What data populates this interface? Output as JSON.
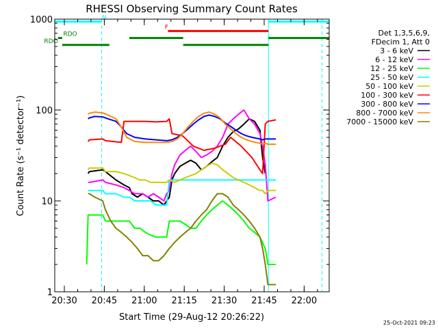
{
  "chart_data": {
    "type": "line",
    "title": "RHESSI Observing Summary Count Rates",
    "xlabel": "Start Time (29-Aug-12 20:26:22)",
    "ylabel": "Count Rate (s⁻¹ detector⁻¹)",
    "yscale": "log",
    "ylim": [
      1,
      1000
    ],
    "xlim_min": [
      0,
      103
    ],
    "yticks": [
      {
        "value": 1,
        "label": "1"
      },
      {
        "value": 10,
        "label": "10"
      },
      {
        "value": 100,
        "label": "100"
      },
      {
        "value": 1000,
        "label": "1000"
      }
    ],
    "xticks": [
      {
        "min": 3.6,
        "label": "20:30"
      },
      {
        "min": 18.6,
        "label": "20:45"
      },
      {
        "min": 33.6,
        "label": "21:00"
      },
      {
        "min": 48.6,
        "label": "21:15"
      },
      {
        "min": 63.6,
        "label": "21:30"
      },
      {
        "min": 78.6,
        "label": "21:45"
      },
      {
        "min": 93.6,
        "label": "22:00"
      }
    ],
    "legend_placement": "right-top",
    "legend_header": [
      "Det 1,3,5,6,9,",
      "FDecim 1, Att 0"
    ],
    "series": [
      {
        "name": "3 - 6 keV",
        "color": "#000000",
        "x": [
          12.5,
          13,
          18,
          19,
          23,
          26,
          28,
          29,
          31,
          33,
          35,
          37,
          39,
          41,
          42,
          43,
          44,
          45,
          47,
          49,
          51,
          53,
          55,
          57,
          59,
          61,
          63,
          65,
          67,
          69,
          71,
          73,
          75,
          77,
          78,
          79
        ],
        "y": [
          20,
          21,
          22,
          21,
          17,
          15,
          14,
          12,
          11,
          12,
          11,
          10,
          10,
          9,
          10,
          11,
          17,
          20,
          24,
          26,
          28,
          26,
          22,
          24,
          27,
          30,
          40,
          50,
          58,
          62,
          70,
          80,
          75,
          60,
          30,
          20
        ]
      },
      {
        "name": "6 - 12 keV",
        "color": "#ff00ff",
        "x": [
          12.5,
          13,
          18,
          19,
          23,
          26,
          28,
          30,
          33,
          35,
          37,
          39,
          41,
          42,
          43,
          44,
          45,
          47,
          49,
          51,
          53,
          55,
          57,
          59,
          61,
          63,
          65,
          67,
          69,
          71,
          73,
          75,
          77,
          78,
          79,
          80,
          83
        ],
        "y": [
          16,
          16,
          17,
          16,
          15,
          14,
          13,
          12,
          12,
          11,
          12,
          11,
          10,
          12,
          13,
          20,
          25,
          32,
          36,
          40,
          35,
          30,
          32,
          35,
          40,
          50,
          70,
          80,
          90,
          100,
          80,
          70,
          55,
          40,
          25,
          10,
          11
        ]
      },
      {
        "name": "12 - 25 keV",
        "color": "#00ff00",
        "x": [
          12,
          12.5,
          13,
          15,
          18,
          19,
          23,
          26,
          28,
          30,
          32,
          34,
          36,
          38,
          40,
          42,
          43,
          45,
          47,
          49,
          51,
          53,
          55,
          57,
          59,
          61,
          63,
          65,
          67,
          69,
          71,
          73,
          75,
          77,
          79,
          80,
          83
        ],
        "y": [
          2,
          7,
          7,
          7,
          7,
          6,
          6,
          6,
          6,
          5,
          5,
          4.5,
          4.2,
          4,
          4,
          4,
          6,
          6,
          6,
          5.5,
          5,
          5,
          6,
          7,
          8,
          9,
          10,
          9,
          8,
          7,
          6,
          5,
          4.5,
          4,
          3,
          2,
          2
        ]
      },
      {
        "name": "25 - 50 keV",
        "color": "#00ffff",
        "x": [
          12.5,
          13,
          15,
          18,
          19,
          23,
          26,
          28,
          30,
          32,
          34,
          36,
          38,
          40,
          42,
          43,
          44,
          46,
          50,
          54,
          58,
          62,
          66,
          70,
          74,
          77,
          78,
          79,
          80,
          83
        ],
        "y": [
          13,
          13,
          13,
          13,
          12,
          12,
          11,
          11,
          10,
          10,
          10,
          10,
          9,
          9,
          9,
          17,
          17,
          17,
          17,
          17,
          17,
          17,
          17,
          17,
          17,
          17,
          17,
          17,
          17,
          17
        ]
      },
      {
        "name": "50 - 100 keV",
        "color": "#cccc00",
        "x": [
          12.5,
          13,
          18,
          19,
          23,
          26,
          28,
          30,
          32,
          34,
          36,
          38,
          40,
          42,
          43,
          45,
          47,
          49,
          51,
          53,
          55,
          57,
          59,
          61,
          63,
          65,
          67,
          69,
          71,
          73,
          75,
          77,
          78,
          79,
          80,
          83
        ],
        "y": [
          22,
          23,
          23,
          21,
          21,
          20,
          19,
          18,
          17,
          17,
          16,
          16,
          16,
          16,
          17,
          16,
          17,
          18,
          19,
          20,
          22,
          24,
          26,
          25,
          22,
          20,
          18,
          17,
          16,
          15,
          14,
          13,
          13,
          12,
          13,
          13
        ]
      },
      {
        "name": "100 - 300 keV",
        "color": "#ff0000",
        "x": [
          12.5,
          13,
          18,
          19,
          25,
          26,
          30,
          34,
          38,
          42,
          43,
          44,
          48,
          52,
          56,
          60,
          62,
          64,
          66,
          70,
          74,
          77,
          78,
          79,
          80,
          83
        ],
        "y": [
          45,
          47,
          48,
          46,
          44,
          75,
          75,
          75,
          74,
          75,
          80,
          55,
          52,
          40,
          36,
          38,
          40,
          42,
          50,
          40,
          30,
          22,
          20,
          70,
          75,
          78
        ]
      },
      {
        "name": "300 - 800 keV",
        "color": "#0000ff",
        "x": [
          12.5,
          13,
          15,
          18,
          20,
          23,
          25,
          27,
          30,
          34,
          38,
          42,
          44,
          46,
          48,
          50,
          52,
          54,
          56,
          58,
          60,
          62,
          64,
          66,
          68,
          70,
          72,
          74,
          77,
          78,
          79,
          80,
          83
        ],
        "y": [
          80,
          82,
          85,
          84,
          80,
          75,
          65,
          55,
          50,
          48,
          47,
          46,
          47,
          50,
          55,
          62,
          70,
          78,
          85,
          88,
          85,
          80,
          72,
          66,
          60,
          55,
          52,
          50,
          48,
          47,
          48,
          48,
          48
        ]
      },
      {
        "name": "800 - 7000 keV",
        "color": "#ff8800",
        "x": [
          12.5,
          13,
          15,
          18,
          20,
          23,
          25,
          27,
          30,
          34,
          38,
          42,
          44,
          46,
          48,
          50,
          52,
          54,
          56,
          58,
          60,
          62,
          64,
          66,
          68,
          70,
          72,
          74,
          77,
          78,
          79,
          80,
          83
        ],
        "y": [
          90,
          92,
          95,
          93,
          88,
          80,
          65,
          50,
          45,
          44,
          44,
          44,
          45,
          48,
          55,
          65,
          75,
          85,
          92,
          95,
          90,
          82,
          70,
          62,
          55,
          50,
          47,
          45,
          43,
          42,
          43,
          42,
          42
        ]
      },
      {
        "name": "7000 - 15000 keV",
        "color": "#808000",
        "x": [
          12.5,
          13,
          15,
          18,
          19,
          21,
          23,
          25,
          27,
          29,
          31,
          33,
          35,
          37,
          39,
          41,
          43,
          45,
          47,
          49,
          51,
          53,
          55,
          57,
          59,
          61,
          63,
          65,
          67,
          69,
          71,
          73,
          75,
          77,
          78,
          79,
          80,
          83
        ],
        "y": [
          12,
          12,
          11,
          10,
          8,
          6,
          5,
          4.5,
          4,
          3.5,
          3,
          2.5,
          2.5,
          2.2,
          2.2,
          2.5,
          3,
          3.5,
          4,
          4.5,
          5,
          6,
          7,
          8,
          10,
          12,
          12,
          11,
          9,
          8,
          7,
          6,
          5,
          4,
          3,
          2,
          1.2,
          1.2
        ]
      }
    ],
    "annotations": {
      "bars": [
        {
          "label": "N",
          "color": "#00ffff",
          "y": 940,
          "segments": [
            [
              0,
              17.6
            ]
          ],
          "label_at": 17.8
        },
        {
          "label": "",
          "color": "#00ffff",
          "y": 940,
          "segments": [
            [
              80.2,
              103
            ]
          ]
        },
        {
          "label": "F",
          "color": "#ff0000",
          "y": 740,
          "segments": [
            [
              42.5,
              80.2
            ]
          ],
          "label_at": 41.3
        },
        {
          "label": "RDO",
          "color": "#008000",
          "y": 620,
          "segments": [
            [
              1.2,
              2.8
            ],
            [
              28,
              48.2
            ],
            [
              80.2,
              103
            ]
          ],
          "label_at": 3.2
        },
        {
          "label": "RDO",
          "color": "#008000",
          "y": 520,
          "segments": [
            [
              2.8,
              20.5
            ],
            [
              48.2,
              80.2
            ]
          ],
          "label_at": -4.0
        }
      ],
      "vlines": [
        {
          "min": 0,
          "color": "#00ffff",
          "style": "solid"
        },
        {
          "min": 17.6,
          "color": "#00ffff",
          "style": "dashed"
        },
        {
          "min": 80.2,
          "color": "#00ffff",
          "style": "solid"
        },
        {
          "min": 100.3,
          "color": "#00ffff",
          "style": "dashed"
        }
      ]
    },
    "timestamp": "25-Oct-2021 09:23"
  }
}
